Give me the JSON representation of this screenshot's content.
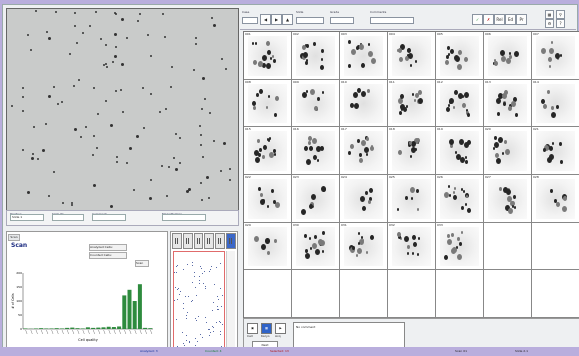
{
  "app": {
    "scan_info": {
      "labels": [
        "Position",
        "Slide ID",
        "Comment",
        "Magnification"
      ],
      "values": [
        "Slide 1",
        "",
        "",
        ""
      ]
    },
    "left_panel": {
      "tab_label": "Scan",
      "title": "Scan",
      "minis": [
        "Analyzed Cells:",
        "Counted Cells:",
        "Scan"
      ],
      "histogram": {
        "ylabel": "# of Cells",
        "xlabel": "Cell quality",
        "yticks": [
          "200",
          "150",
          "100",
          "50",
          "0"
        ],
        "bars": [
          2,
          1,
          2,
          3,
          2,
          2,
          3,
          2,
          4,
          5,
          3,
          2,
          6,
          4,
          5,
          6,
          8,
          7,
          9,
          120,
          140,
          100,
          160,
          4,
          3
        ]
      }
    },
    "right_toolbar": {
      "labels": [
        "Case",
        "Slide",
        "Grade",
        "Comments"
      ],
      "fields": [
        "",
        "",
        "",
        ""
      ],
      "buttons": [
        "✓",
        "✗",
        "Rel",
        "Ed",
        "Pr"
      ]
    },
    "grid": {
      "cell_numbers": [
        "001",
        "002",
        "003",
        "004",
        "005",
        "006",
        "007",
        "008",
        "009",
        "010",
        "011",
        "012",
        "013",
        "014",
        "015",
        "016",
        "017",
        "018",
        "019",
        "020",
        "021",
        "022",
        "023",
        "024",
        "025",
        "026",
        "027",
        "028",
        "029",
        "030",
        "031",
        "032",
        "033",
        "",
        "",
        "",
        "",
        "",
        "",
        "",
        "",
        ""
      ]
    },
    "bottom": {
      "buttons": [
        "Cell",
        "Karyo",
        "Acq"
      ],
      "notes_label": "No comment",
      "small_label": "Next"
    },
    "status": {
      "items": [
        "Analyzed: 3",
        "Counted: 4",
        "Selected: 13",
        "Scan 01",
        "Slide 2.1"
      ],
      "colors": [
        "#0b2d9a",
        "#0b7a2a",
        "#b01010",
        "#222222",
        "#222222"
      ]
    },
    "colors": {
      "grid_border": "#888888",
      "bar_color": "#2e8b3e",
      "brand_bg": "#b9aedd"
    }
  }
}
